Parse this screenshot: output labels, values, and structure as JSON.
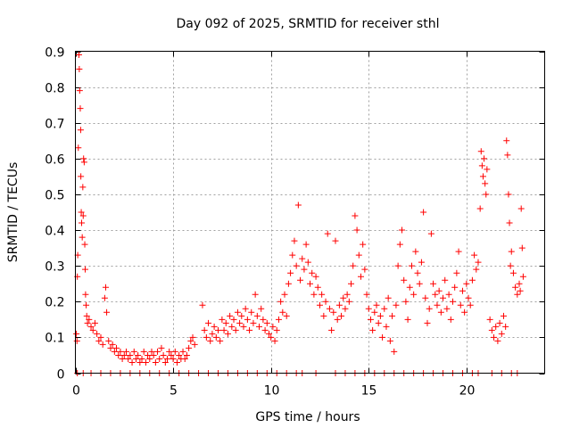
{
  "chart_data": {
    "type": "scatter",
    "title": "Day 092 of 2025, SRMTID for receiver sthl",
    "xlabel": "GPS time / hours",
    "ylabel": "SRMTID / TECUs",
    "xlim": [
      0,
      24
    ],
    "ylim": [
      0,
      0.9
    ],
    "xticks": [
      0,
      5,
      10,
      15,
      20
    ],
    "yticks": [
      0,
      0.1,
      0.2,
      0.3,
      0.4,
      0.5,
      0.6,
      0.7,
      0.8,
      0.9
    ],
    "grid": true,
    "marker": "plus",
    "color": "#ff0000",
    "series": [
      {
        "name": "SRMTID",
        "points": [
          [
            0.05,
            0.11
          ],
          [
            0.08,
            0.09
          ],
          [
            0.1,
            0.27
          ],
          [
            0.12,
            0.33
          ],
          [
            0.15,
            0.63
          ],
          [
            0.18,
            0.89
          ],
          [
            0.2,
            0.85
          ],
          [
            0.22,
            0.79
          ],
          [
            0.25,
            0.74
          ],
          [
            0.27,
            0.68
          ],
          [
            0.28,
            0.55
          ],
          [
            0.3,
            0.45
          ],
          [
            0.32,
            0.42
          ],
          [
            0.35,
            0.38
          ],
          [
            0.38,
            0.52
          ],
          [
            0.4,
            0.44
          ],
          [
            0.42,
            0.6
          ],
          [
            0.45,
            0.59
          ],
          [
            0.48,
            0.36
          ],
          [
            0.5,
            0.29
          ],
          [
            0.52,
            0.22
          ],
          [
            0.55,
            0.19
          ],
          [
            0.58,
            0.16
          ],
          [
            0.62,
            0.14
          ],
          [
            0.7,
            0.15
          ],
          [
            0.8,
            0.13
          ],
          [
            0.9,
            0.12
          ],
          [
            1.0,
            0.14
          ],
          [
            1.1,
            0.11
          ],
          [
            1.2,
            0.09
          ],
          [
            1.3,
            0.1
          ],
          [
            1.4,
            0.08
          ],
          [
            1.5,
            0.21
          ],
          [
            1.55,
            0.24
          ],
          [
            1.6,
            0.17
          ],
          [
            1.7,
            0.09
          ],
          [
            1.8,
            0.07
          ],
          [
            1.9,
            0.08
          ],
          [
            2.0,
            0.06
          ],
          [
            2.1,
            0.07
          ],
          [
            2.2,
            0.05
          ],
          [
            2.3,
            0.06
          ],
          [
            2.4,
            0.04
          ],
          [
            2.5,
            0.05
          ],
          [
            2.6,
            0.06
          ],
          [
            2.7,
            0.04
          ],
          [
            2.8,
            0.05
          ],
          [
            2.9,
            0.03
          ],
          [
            3.0,
            0.06
          ],
          [
            3.1,
            0.04
          ],
          [
            3.2,
            0.05
          ],
          [
            3.3,
            0.03
          ],
          [
            3.4,
            0.04
          ],
          [
            3.5,
            0.06
          ],
          [
            3.6,
            0.03
          ],
          [
            3.7,
            0.05
          ],
          [
            3.8,
            0.04
          ],
          [
            3.9,
            0.06
          ],
          [
            4.0,
            0.05
          ],
          [
            4.1,
            0.03
          ],
          [
            4.2,
            0.06
          ],
          [
            4.3,
            0.04
          ],
          [
            4.4,
            0.07
          ],
          [
            4.5,
            0.05
          ],
          [
            4.6,
            0.03
          ],
          [
            4.7,
            0.04
          ],
          [
            4.8,
            0.06
          ],
          [
            4.9,
            0.05
          ],
          [
            5.0,
            0.04
          ],
          [
            5.1,
            0.06
          ],
          [
            5.2,
            0.03
          ],
          [
            5.3,
            0.05
          ],
          [
            5.4,
            0.04
          ],
          [
            5.5,
            0.06
          ],
          [
            5.6,
            0.04
          ],
          [
            5.7,
            0.05
          ],
          [
            5.8,
            0.07
          ],
          [
            5.9,
            0.09
          ],
          [
            6.0,
            0.1
          ],
          [
            6.1,
            0.08
          ],
          [
            6.5,
            0.19
          ],
          [
            6.6,
            0.12
          ],
          [
            6.7,
            0.1
          ],
          [
            6.8,
            0.14
          ],
          [
            6.9,
            0.09
          ],
          [
            7.0,
            0.11
          ],
          [
            7.1,
            0.13
          ],
          [
            7.2,
            0.1
          ],
          [
            7.3,
            0.12
          ],
          [
            7.4,
            0.09
          ],
          [
            7.5,
            0.15
          ],
          [
            7.6,
            0.12
          ],
          [
            7.7,
            0.14
          ],
          [
            7.8,
            0.11
          ],
          [
            7.9,
            0.16
          ],
          [
            8.0,
            0.13
          ],
          [
            8.1,
            0.15
          ],
          [
            8.2,
            0.12
          ],
          [
            8.3,
            0.17
          ],
          [
            8.4,
            0.14
          ],
          [
            8.5,
            0.16
          ],
          [
            8.6,
            0.13
          ],
          [
            8.7,
            0.18
          ],
          [
            8.8,
            0.15
          ],
          [
            8.9,
            0.12
          ],
          [
            9.0,
            0.17
          ],
          [
            9.1,
            0.14
          ],
          [
            9.2,
            0.22
          ],
          [
            9.3,
            0.16
          ],
          [
            9.4,
            0.13
          ],
          [
            9.5,
            0.18
          ],
          [
            9.6,
            0.15
          ],
          [
            9.7,
            0.12
          ],
          [
            9.8,
            0.14
          ],
          [
            9.9,
            0.11
          ],
          [
            10.0,
            0.1
          ],
          [
            10.1,
            0.13
          ],
          [
            10.2,
            0.09
          ],
          [
            10.3,
            0.12
          ],
          [
            10.4,
            0.15
          ],
          [
            10.5,
            0.2
          ],
          [
            10.6,
            0.17
          ],
          [
            10.7,
            0.22
          ],
          [
            10.8,
            0.16
          ],
          [
            10.9,
            0.25
          ],
          [
            11.0,
            0.28
          ],
          [
            11.1,
            0.33
          ],
          [
            11.2,
            0.37
          ],
          [
            11.3,
            0.3
          ],
          [
            11.4,
            0.47
          ],
          [
            11.5,
            0.26
          ],
          [
            11.6,
            0.32
          ],
          [
            11.7,
            0.29
          ],
          [
            11.8,
            0.36
          ],
          [
            11.9,
            0.31
          ],
          [
            12.0,
            0.25
          ],
          [
            12.1,
            0.28
          ],
          [
            12.2,
            0.22
          ],
          [
            12.3,
            0.27
          ],
          [
            12.4,
            0.24
          ],
          [
            12.5,
            0.19
          ],
          [
            12.6,
            0.22
          ],
          [
            12.7,
            0.16
          ],
          [
            12.8,
            0.2
          ],
          [
            12.9,
            0.39
          ],
          [
            13.0,
            0.18
          ],
          [
            13.1,
            0.12
          ],
          [
            13.2,
            0.17
          ],
          [
            13.3,
            0.37
          ],
          [
            13.4,
            0.15
          ],
          [
            13.5,
            0.19
          ],
          [
            13.6,
            0.16
          ],
          [
            13.7,
            0.21
          ],
          [
            13.8,
            0.18
          ],
          [
            13.9,
            0.22
          ],
          [
            14.0,
            0.2
          ],
          [
            14.1,
            0.25
          ],
          [
            14.2,
            0.3
          ],
          [
            14.3,
            0.44
          ],
          [
            14.4,
            0.4
          ],
          [
            14.5,
            0.33
          ],
          [
            14.6,
            0.27
          ],
          [
            14.7,
            0.36
          ],
          [
            14.8,
            0.29
          ],
          [
            14.9,
            0.22
          ],
          [
            15.0,
            0.18
          ],
          [
            15.1,
            0.15
          ],
          [
            15.2,
            0.12
          ],
          [
            15.3,
            0.17
          ],
          [
            15.4,
            0.19
          ],
          [
            15.5,
            0.14
          ],
          [
            15.6,
            0.16
          ],
          [
            15.7,
            0.1
          ],
          [
            15.8,
            0.18
          ],
          [
            15.9,
            0.13
          ],
          [
            16.0,
            0.21
          ],
          [
            16.1,
            0.09
          ],
          [
            16.2,
            0.16
          ],
          [
            16.3,
            0.06
          ],
          [
            16.4,
            0.19
          ],
          [
            16.5,
            0.3
          ],
          [
            16.6,
            0.36
          ],
          [
            16.7,
            0.4
          ],
          [
            16.8,
            0.26
          ],
          [
            16.9,
            0.2
          ],
          [
            17.0,
            0.15
          ],
          [
            17.1,
            0.24
          ],
          [
            17.2,
            0.3
          ],
          [
            17.3,
            0.22
          ],
          [
            17.4,
            0.34
          ],
          [
            17.5,
            0.28
          ],
          [
            17.6,
            0.25
          ],
          [
            17.7,
            0.31
          ],
          [
            17.8,
            0.45
          ],
          [
            17.9,
            0.21
          ],
          [
            18.0,
            0.14
          ],
          [
            18.1,
            0.18
          ],
          [
            18.2,
            0.39
          ],
          [
            18.3,
            0.25
          ],
          [
            18.4,
            0.22
          ],
          [
            18.5,
            0.19
          ],
          [
            18.6,
            0.23
          ],
          [
            18.7,
            0.17
          ],
          [
            18.8,
            0.21
          ],
          [
            18.9,
            0.26
          ],
          [
            19.0,
            0.18
          ],
          [
            19.1,
            0.22
          ],
          [
            19.2,
            0.15
          ],
          [
            19.3,
            0.2
          ],
          [
            19.4,
            0.24
          ],
          [
            19.5,
            0.28
          ],
          [
            19.6,
            0.34
          ],
          [
            19.7,
            0.19
          ],
          [
            19.8,
            0.23
          ],
          [
            19.9,
            0.17
          ],
          [
            20.0,
            0.25
          ],
          [
            20.1,
            0.21
          ],
          [
            20.2,
            0.19
          ],
          [
            20.3,
            0.26
          ],
          [
            20.4,
            0.33
          ],
          [
            20.5,
            0.29
          ],
          [
            20.6,
            0.31
          ],
          [
            20.7,
            0.46
          ],
          [
            20.75,
            0.62
          ],
          [
            20.8,
            0.58
          ],
          [
            20.85,
            0.55
          ],
          [
            20.9,
            0.6
          ],
          [
            20.95,
            0.53
          ],
          [
            21.0,
            0.5
          ],
          [
            21.05,
            0.57
          ],
          [
            21.2,
            0.15
          ],
          [
            21.3,
            0.12
          ],
          [
            21.4,
            0.1
          ],
          [
            21.5,
            0.13
          ],
          [
            21.6,
            0.09
          ],
          [
            21.7,
            0.14
          ],
          [
            21.8,
            0.11
          ],
          [
            21.9,
            0.16
          ],
          [
            22.0,
            0.13
          ],
          [
            22.05,
            0.65
          ],
          [
            22.1,
            0.61
          ],
          [
            22.15,
            0.5
          ],
          [
            22.2,
            0.42
          ],
          [
            22.25,
            0.3
          ],
          [
            22.3,
            0.34
          ],
          [
            22.4,
            0.28
          ],
          [
            22.5,
            0.24
          ],
          [
            22.6,
            0.22
          ],
          [
            22.7,
            0.25
          ],
          [
            22.75,
            0.23
          ],
          [
            22.8,
            0.46
          ],
          [
            22.85,
            0.35
          ],
          [
            22.9,
            0.27
          ],
          [
            0.1,
            0.0
          ],
          [
            0.4,
            0.0
          ],
          [
            0.8,
            0.0
          ],
          [
            1.3,
            0.0
          ],
          [
            1.8,
            0.0
          ],
          [
            2.3,
            0.0
          ],
          [
            2.8,
            0.0
          ],
          [
            3.3,
            0.0
          ],
          [
            3.8,
            0.0
          ],
          [
            4.3,
            0.0
          ],
          [
            4.8,
            0.0
          ],
          [
            5.3,
            0.0
          ],
          [
            5.8,
            0.0
          ],
          [
            6.3,
            0.0
          ],
          [
            6.8,
            0.0
          ],
          [
            7.3,
            0.0
          ],
          [
            7.8,
            0.0
          ],
          [
            8.3,
            0.0
          ],
          [
            8.8,
            0.0
          ],
          [
            9.3,
            0.0
          ],
          [
            9.8,
            0.0
          ],
          [
            10.3,
            0.0
          ],
          [
            10.8,
            0.0
          ],
          [
            11.3,
            0.0
          ],
          [
            11.6,
            0.0
          ],
          [
            12.3,
            0.0
          ],
          [
            13.3,
            0.0
          ],
          [
            13.8,
            0.0
          ],
          [
            14.3,
            0.0
          ],
          [
            14.8,
            0.0
          ],
          [
            15.3,
            0.0
          ],
          [
            15.8,
            0.0
          ],
          [
            16.3,
            0.0
          ],
          [
            16.8,
            0.0
          ],
          [
            17.3,
            0.0
          ],
          [
            17.8,
            0.0
          ],
          [
            18.3,
            0.0
          ],
          [
            18.8,
            0.0
          ],
          [
            19.3,
            0.0
          ],
          [
            19.8,
            0.0
          ],
          [
            20.3,
            0.0
          ],
          [
            20.6,
            0.0
          ],
          [
            21.3,
            0.0
          ],
          [
            21.8,
            0.0
          ],
          [
            22.3,
            0.0
          ],
          [
            22.6,
            0.0
          ]
        ]
      }
    ]
  }
}
